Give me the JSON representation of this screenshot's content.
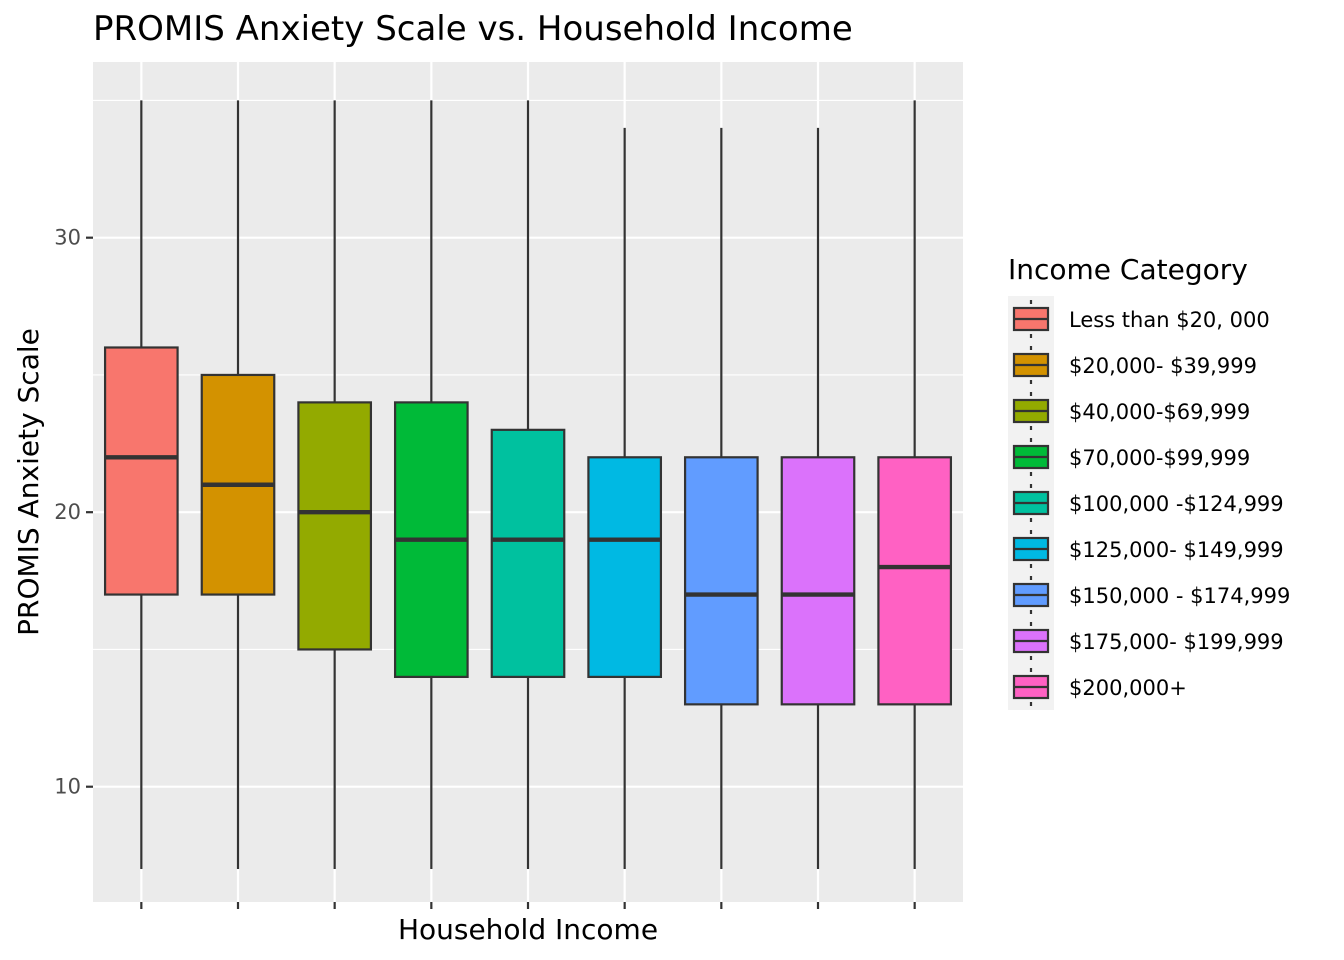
{
  "chart_data": {
    "type": "boxplot",
    "title": "PROMIS Anxiety Scale vs. Household Income",
    "xlabel": "Household Income",
    "ylabel": "PROMIS Anxiety Scale",
    "ylim": [
      5.8,
      36.4
    ],
    "y_ticks": [
      10,
      20,
      30
    ],
    "grid": true,
    "panel_background": "#ebebeb",
    "legend": {
      "title": "Income Category",
      "placement": "right"
    },
    "series": [
      {
        "name": "Less than $20, 000",
        "color": "#f8766d",
        "whisker_low": 7,
        "q1": 17,
        "median": 22,
        "q3": 26,
        "whisker_high": 35
      },
      {
        "name": "$20,000- $39,999",
        "color": "#d39200",
        "whisker_low": 7,
        "q1": 17,
        "median": 21,
        "q3": 25,
        "whisker_high": 35
      },
      {
        "name": "$40,000-$69,999",
        "color": "#93aa00",
        "whisker_low": 7,
        "q1": 15,
        "median": 20,
        "q3": 24,
        "whisker_high": 35
      },
      {
        "name": "$70,000-$99,999",
        "color": "#00ba38",
        "whisker_low": 7,
        "q1": 14,
        "median": 19,
        "q3": 24,
        "whisker_high": 35
      },
      {
        "name": "$100,000 -$124,999",
        "color": "#00c19f",
        "whisker_low": 7,
        "q1": 14,
        "median": 19,
        "q3": 23,
        "whisker_high": 35
      },
      {
        "name": "$125,000- $149,999",
        "color": "#00b9e3",
        "whisker_low": 7,
        "q1": 14,
        "median": 19,
        "q3": 22,
        "whisker_high": 34
      },
      {
        "name": "$150,000 - $174,999",
        "color": "#619cff",
        "whisker_low": 7,
        "q1": 13,
        "median": 17,
        "q3": 22,
        "whisker_high": 34
      },
      {
        "name": "$175,000- $199,999",
        "color": "#db72fb",
        "whisker_low": 7,
        "q1": 13,
        "median": 17,
        "q3": 22,
        "whisker_high": 34
      },
      {
        "name": "$200,000+",
        "color": "#ff61c3",
        "whisker_low": 7,
        "q1": 13,
        "median": 18,
        "q3": 22,
        "whisker_high": 35
      }
    ]
  }
}
